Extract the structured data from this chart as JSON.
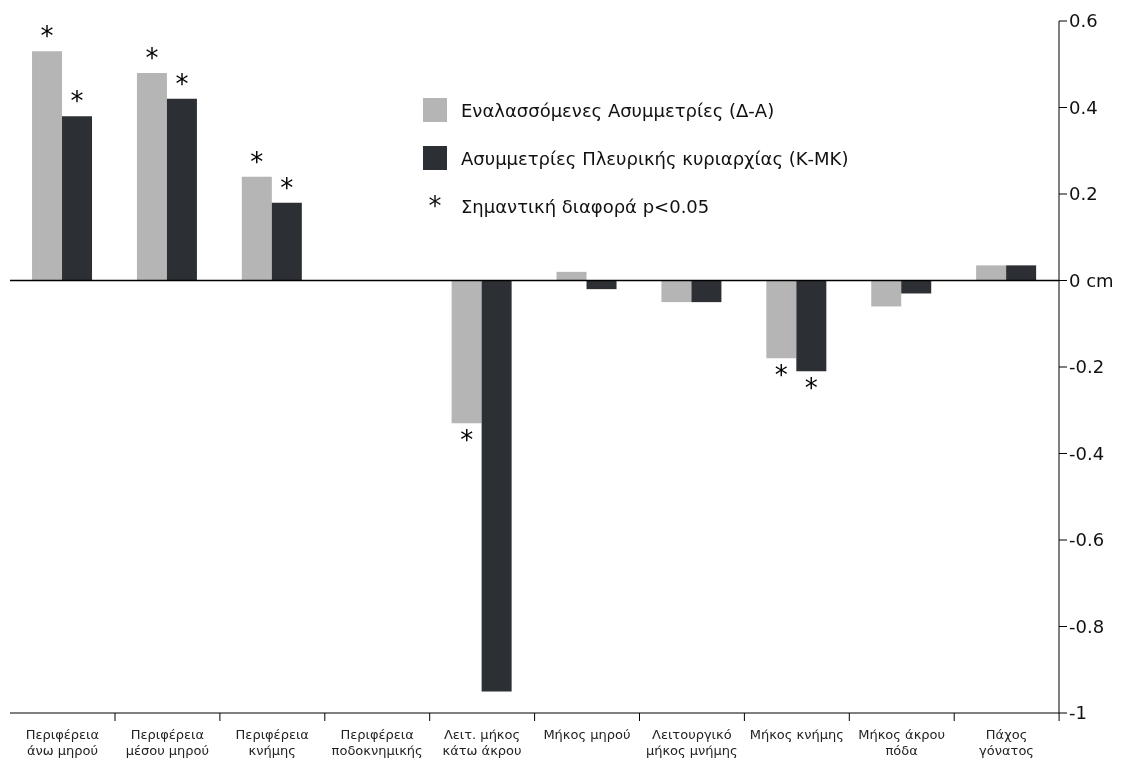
{
  "chart_data": {
    "type": "bar",
    "categories": [
      "Περιφέρεια άνω μηρού",
      "Περιφέρεια μέσου μηρού",
      "Περιφέρεια κνήμης",
      "Περιφέρεια ποδοκνημικής",
      "Λειτ. μήκος κάτω άκρου",
      "Μήκος μηρού",
      "Λειτουργικό μήκος μνήμης",
      "Μήκος κνήμης",
      "Μήκος άκρου πόδα",
      "Πάχος γόνατος"
    ],
    "series": [
      {
        "name": "Εναλασσόμενες Ασυμμετρίες (Δ-Α)",
        "color": "#b4b5b4",
        "values": [
          0.53,
          0.48,
          0.24,
          0,
          -0.33,
          0.02,
          -0.05,
          -0.18,
          -0.06,
          0.035
        ],
        "value_labels": [
          "*",
          "*",
          "*",
          null,
          "*",
          null,
          null,
          "*",
          null,
          null
        ]
      },
      {
        "name": "Ασυμμετρίες Πλευρικής κυριαρχίας (Κ-ΜΚ)",
        "color": "#2c2f33",
        "values": [
          0.38,
          0.42,
          0.18,
          0,
          -0.95,
          -0.02,
          -0.05,
          -0.21,
          -0.03,
          0.035
        ],
        "value_labels": [
          "*",
          "*",
          "*",
          null,
          null,
          null,
          null,
          "*",
          null,
          null
        ]
      }
    ],
    "ylim": [
      -1,
      0.6
    ],
    "yticks": [
      -1,
      -0.8,
      -0.6,
      -0.4,
      -0.2,
      {
        "value": 0,
        "label": "0 cm"
      },
      0.2,
      0.4,
      0.6
    ],
    "annotations": [
      "* Σημαντική διαφορά p<0.05"
    ],
    "legend": "top right"
  }
}
